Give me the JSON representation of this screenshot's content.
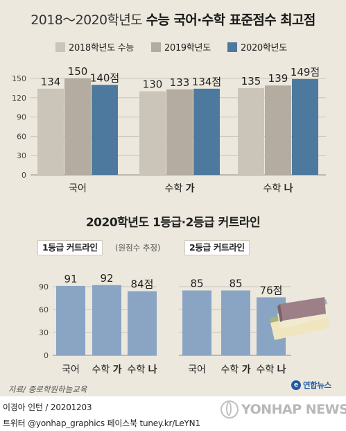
{
  "title": {
    "light": "2018～2020학년도",
    "bold": "수능 국어·수학 표준점수 최고점"
  },
  "subtitle": "2020학년도 1등급·2등급 커트라인",
  "colors": {
    "background": "#ece8dd",
    "series_2018": "#cbc4b8",
    "series_2019": "#b4aca1",
    "series_2020": "#4e799f",
    "cutline_bar": "#8aa5c4"
  },
  "chart_data": [
    {
      "type": "bar",
      "categories": [
        "국어",
        "수학 가",
        "수학 나"
      ],
      "series": [
        {
          "name": "2018학년도 수능",
          "values": [
            134,
            130,
            135
          ]
        },
        {
          "name": "2019학년도",
          "values": [
            150,
            133,
            139
          ]
        },
        {
          "name": "2020학년도",
          "values": [
            140,
            134,
            149
          ]
        }
      ],
      "data_labels": [
        [
          "134",
          "150",
          "140점"
        ],
        [
          "130",
          "133",
          "134점"
        ],
        [
          "135",
          "139",
          "149점"
        ]
      ],
      "y_ticks": [
        "0",
        "30",
        "60",
        "90",
        "120",
        "150"
      ],
      "ylim": [
        0,
        150
      ],
      "legend_position": "top",
      "grid": true
    },
    {
      "type": "bar",
      "label": "1등급 커트라인",
      "note": "(원점수 추정)",
      "categories": [
        "국어",
        "수학 가",
        "수학 나"
      ],
      "values": [
        91,
        92,
        84
      ],
      "data_labels": [
        "91",
        "92",
        "84점"
      ],
      "y_ticks": [
        "0",
        "30",
        "60",
        "90"
      ],
      "ylim": [
        0,
        100
      ],
      "grid": true
    },
    {
      "type": "bar",
      "label": "2등급 커트라인",
      "categories": [
        "국어",
        "수학 가",
        "수학 나"
      ],
      "values": [
        85,
        85,
        76
      ],
      "data_labels": [
        "85",
        "85",
        "76점"
      ],
      "ylim": [
        0,
        100
      ],
      "grid": true
    }
  ],
  "footer": {
    "source": "자료/ 종로학원하늘교육",
    "agency": "연합뉴스",
    "agency_mark": "e",
    "credit": "이경아 인턴 / 20201203",
    "social": "트위터 @yonhap_graphics  페이스북 tuney.kr/LeYN1",
    "watermark": "YONHAP NEWS"
  }
}
